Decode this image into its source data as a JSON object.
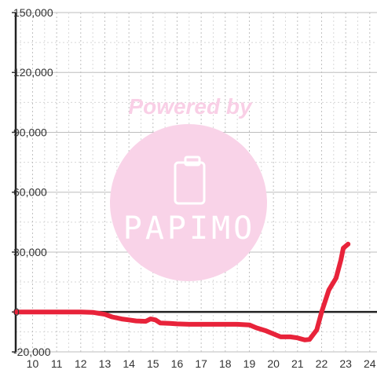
{
  "watermark": {
    "line1": "Powered by",
    "logo": "PAPIMO",
    "color": "#f9cfe6"
  },
  "chart_data": {
    "type": "line",
    "title": "",
    "xlabel": "",
    "ylabel": "",
    "xlim": [
      9.3,
      24.3
    ],
    "ylim": [
      -20000,
      150000
    ],
    "x_ticks": [
      10,
      11,
      12,
      13,
      14,
      15,
      16,
      17,
      18,
      19,
      20,
      21,
      22,
      23,
      24
    ],
    "y_ticks": [
      -20000,
      0,
      30000,
      60000,
      90000,
      120000,
      150000
    ],
    "x_tick_labels": [
      "10",
      "11",
      "12",
      "13",
      "14",
      "15",
      "16",
      "17",
      "18",
      "19",
      "20",
      "21",
      "22",
      "23",
      "24"
    ],
    "y_tick_labels": [
      "-20,000",
      "0",
      "30,000",
      "60,000",
      "90,000",
      "120,000",
      "150,000"
    ],
    "grid": true,
    "zero_line": true,
    "series": [
      {
        "color": "#e8233a",
        "points": [
          [
            9.3,
            0
          ],
          [
            10.0,
            0
          ],
          [
            11.0,
            0
          ],
          [
            12.0,
            0
          ],
          [
            12.5,
            -200
          ],
          [
            13.0,
            -1200
          ],
          [
            13.3,
            -2500
          ],
          [
            13.7,
            -3500
          ],
          [
            14.0,
            -4000
          ],
          [
            14.3,
            -4500
          ],
          [
            14.7,
            -4700
          ],
          [
            14.9,
            -3500
          ],
          [
            15.1,
            -4000
          ],
          [
            15.3,
            -5500
          ],
          [
            15.7,
            -5700
          ],
          [
            16.0,
            -6000
          ],
          [
            16.5,
            -6200
          ],
          [
            17.0,
            -6200
          ],
          [
            17.5,
            -6200
          ],
          [
            18.0,
            -6200
          ],
          [
            18.5,
            -6200
          ],
          [
            19.0,
            -6500
          ],
          [
            19.3,
            -8000
          ],
          [
            19.7,
            -9500
          ],
          [
            20.0,
            -11000
          ],
          [
            20.3,
            -12500
          ],
          [
            20.7,
            -12500
          ],
          [
            21.0,
            -13000
          ],
          [
            21.3,
            -14000
          ],
          [
            21.5,
            -13800
          ],
          [
            21.8,
            -9000
          ],
          [
            22.0,
            0
          ],
          [
            22.3,
            11000
          ],
          [
            22.6,
            17000
          ],
          [
            22.8,
            26000
          ],
          [
            22.9,
            32000
          ],
          [
            23.1,
            34000
          ]
        ]
      }
    ]
  }
}
